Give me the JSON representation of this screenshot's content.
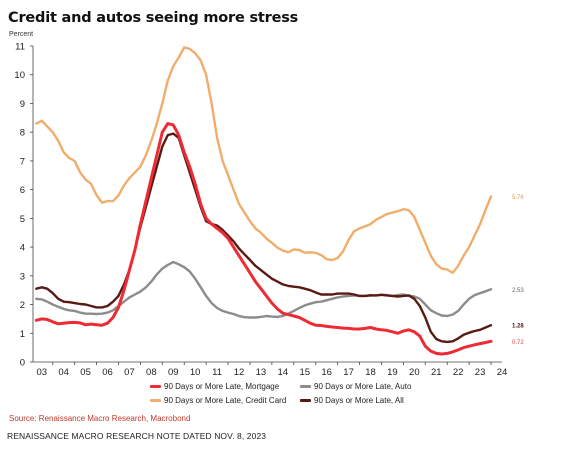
{
  "title": "Credit and autos seeing more stress",
  "units_label": "Percent",
  "source": "Source: Renaissance Macro Research, Macrobond",
  "footnote": "RENAISSANCE MACRO RESEARCH NOTE DATED NOV. 8, 2023",
  "chart_data": {
    "type": "line",
    "title": "Credit and autos seeing more stress",
    "ylabel": "Percent",
    "xlabel": "",
    "xlim": [
      2002.6,
      2024.0
    ],
    "ylim": [
      0,
      11
    ],
    "y_ticks": [
      0,
      1,
      2,
      3,
      4,
      5,
      6,
      7,
      8,
      9,
      10,
      11
    ],
    "x_ticks": [
      {
        "v": 2003,
        "label": "03"
      },
      {
        "v": 2004,
        "label": "04"
      },
      {
        "v": 2005,
        "label": "05"
      },
      {
        "v": 2006,
        "label": "06"
      },
      {
        "v": 2007,
        "label": "07"
      },
      {
        "v": 2008,
        "label": "08"
      },
      {
        "v": 2009,
        "label": "09"
      },
      {
        "v": 2010,
        "label": "10"
      },
      {
        "v": 2011,
        "label": "11"
      },
      {
        "v": 2012,
        "label": "12"
      },
      {
        "v": 2013,
        "label": "13"
      },
      {
        "v": 2014,
        "label": "14"
      },
      {
        "v": 2015,
        "label": "15"
      },
      {
        "v": 2016,
        "label": "16"
      },
      {
        "v": 2017,
        "label": "17"
      },
      {
        "v": 2018,
        "label": "18"
      },
      {
        "v": 2019,
        "label": "19"
      },
      {
        "v": 2020,
        "label": "20"
      },
      {
        "v": 2021,
        "label": "21"
      },
      {
        "v": 2022,
        "label": "22"
      },
      {
        "v": 2023,
        "label": "23"
      },
      {
        "v": 2024,
        "label": "24"
      }
    ],
    "grid": false,
    "legend_position": "bottom",
    "series": [
      {
        "name": "90 Days or More Late, Mortgage",
        "color": "#ee2b35",
        "end_label": "0.72",
        "x": [
          2002.75,
          2003.0,
          2003.25,
          2003.5,
          2003.75,
          2004.0,
          2004.25,
          2004.5,
          2004.75,
          2005.0,
          2005.25,
          2005.5,
          2005.75,
          2006.0,
          2006.25,
          2006.5,
          2006.75,
          2007.0,
          2007.25,
          2007.5,
          2007.75,
          2008.0,
          2008.25,
          2008.5,
          2008.75,
          2009.0,
          2009.25,
          2009.5,
          2009.75,
          2010.0,
          2010.25,
          2010.5,
          2010.75,
          2011.0,
          2011.25,
          2011.5,
          2011.75,
          2012.0,
          2012.25,
          2012.5,
          2012.75,
          2013.0,
          2013.25,
          2013.5,
          2013.75,
          2014.0,
          2014.25,
          2014.5,
          2014.75,
          2015.0,
          2015.25,
          2015.5,
          2015.75,
          2016.0,
          2016.25,
          2016.5,
          2016.75,
          2017.0,
          2017.25,
          2017.5,
          2017.75,
          2018.0,
          2018.25,
          2018.5,
          2018.75,
          2019.0,
          2019.25,
          2019.5,
          2019.75,
          2020.0,
          2020.25,
          2020.5,
          2020.75,
          2021.0,
          2021.25,
          2021.5,
          2021.75,
          2022.0,
          2022.25,
          2022.5,
          2022.75,
          2023.0,
          2023.25,
          2023.5
        ],
        "values": [
          1.45,
          1.5,
          1.48,
          1.4,
          1.33,
          1.35,
          1.37,
          1.38,
          1.36,
          1.3,
          1.32,
          1.3,
          1.28,
          1.35,
          1.55,
          1.9,
          2.5,
          3.2,
          3.9,
          4.8,
          5.6,
          6.4,
          7.2,
          8.0,
          8.3,
          8.25,
          7.9,
          7.3,
          6.8,
          6.2,
          5.5,
          5.0,
          4.8,
          4.65,
          4.5,
          4.3,
          4.0,
          3.7,
          3.4,
          3.1,
          2.8,
          2.55,
          2.3,
          2.05,
          1.85,
          1.7,
          1.65,
          1.6,
          1.55,
          1.45,
          1.35,
          1.28,
          1.27,
          1.24,
          1.22,
          1.2,
          1.18,
          1.17,
          1.15,
          1.15,
          1.17,
          1.2,
          1.15,
          1.12,
          1.1,
          1.05,
          1.0,
          1.08,
          1.12,
          1.05,
          0.9,
          0.55,
          0.38,
          0.3,
          0.28,
          0.3,
          0.35,
          0.42,
          0.5,
          0.55,
          0.6,
          0.64,
          0.68,
          0.72
        ]
      },
      {
        "name": "90 Days or More Late, Auto",
        "color": "#8c8c8c",
        "end_label": "2.53",
        "x": [
          2002.75,
          2003.0,
          2003.25,
          2003.5,
          2003.75,
          2004.0,
          2004.25,
          2004.5,
          2004.75,
          2005.0,
          2005.25,
          2005.5,
          2005.75,
          2006.0,
          2006.25,
          2006.5,
          2006.75,
          2007.0,
          2007.25,
          2007.5,
          2007.75,
          2008.0,
          2008.25,
          2008.5,
          2008.75,
          2009.0,
          2009.25,
          2009.5,
          2009.75,
          2010.0,
          2010.25,
          2010.5,
          2010.75,
          2011.0,
          2011.25,
          2011.5,
          2011.75,
          2012.0,
          2012.25,
          2012.5,
          2012.75,
          2013.0,
          2013.25,
          2013.5,
          2013.75,
          2014.0,
          2014.25,
          2014.5,
          2014.75,
          2015.0,
          2015.25,
          2015.5,
          2015.75,
          2016.0,
          2016.25,
          2016.5,
          2016.75,
          2017.0,
          2017.25,
          2017.5,
          2017.75,
          2018.0,
          2018.25,
          2018.5,
          2018.75,
          2019.0,
          2019.25,
          2019.5,
          2019.75,
          2020.0,
          2020.25,
          2020.5,
          2020.75,
          2021.0,
          2021.25,
          2021.5,
          2021.75,
          2022.0,
          2022.25,
          2022.5,
          2022.75,
          2023.0,
          2023.25,
          2023.5
        ],
        "values": [
          2.2,
          2.18,
          2.1,
          2.0,
          1.92,
          1.85,
          1.8,
          1.78,
          1.72,
          1.68,
          1.68,
          1.67,
          1.68,
          1.72,
          1.8,
          1.95,
          2.1,
          2.25,
          2.35,
          2.45,
          2.6,
          2.8,
          3.05,
          3.25,
          3.38,
          3.48,
          3.4,
          3.3,
          3.15,
          2.9,
          2.6,
          2.3,
          2.05,
          1.88,
          1.78,
          1.72,
          1.67,
          1.6,
          1.56,
          1.55,
          1.55,
          1.57,
          1.6,
          1.58,
          1.57,
          1.6,
          1.68,
          1.78,
          1.88,
          1.97,
          2.03,
          2.08,
          2.1,
          2.15,
          2.2,
          2.25,
          2.28,
          2.3,
          2.32,
          2.3,
          2.3,
          2.33,
          2.32,
          2.34,
          2.33,
          2.3,
          2.33,
          2.35,
          2.3,
          2.28,
          2.2,
          2.0,
          1.8,
          1.7,
          1.62,
          1.6,
          1.65,
          1.78,
          2.0,
          2.2,
          2.33,
          2.4,
          2.46,
          2.53
        ]
      },
      {
        "name": "90 Days or More Late, Credit Card",
        "color": "#f0ad6b",
        "end_label": "5.76",
        "x": [
          2002.75,
          2003.0,
          2003.25,
          2003.5,
          2003.75,
          2004.0,
          2004.25,
          2004.5,
          2004.75,
          2005.0,
          2005.25,
          2005.5,
          2005.75,
          2006.0,
          2006.25,
          2006.5,
          2006.75,
          2007.0,
          2007.25,
          2007.5,
          2007.75,
          2008.0,
          2008.25,
          2008.5,
          2008.75,
          2009.0,
          2009.25,
          2009.5,
          2009.75,
          2010.0,
          2010.25,
          2010.5,
          2010.75,
          2011.0,
          2011.25,
          2011.5,
          2011.75,
          2012.0,
          2012.25,
          2012.5,
          2012.75,
          2013.0,
          2013.25,
          2013.5,
          2013.75,
          2014.0,
          2014.25,
          2014.5,
          2014.75,
          2015.0,
          2015.25,
          2015.5,
          2015.75,
          2016.0,
          2016.25,
          2016.5,
          2016.75,
          2017.0,
          2017.25,
          2017.5,
          2017.75,
          2018.0,
          2018.25,
          2018.5,
          2018.75,
          2019.0,
          2019.25,
          2019.5,
          2019.75,
          2020.0,
          2020.25,
          2020.5,
          2020.75,
          2021.0,
          2021.25,
          2021.5,
          2021.75,
          2022.0,
          2022.25,
          2022.5,
          2022.75,
          2023.0,
          2023.25,
          2023.5
        ],
        "values": [
          8.3,
          8.4,
          8.2,
          8.0,
          7.7,
          7.3,
          7.1,
          7.0,
          6.6,
          6.35,
          6.2,
          5.8,
          5.55,
          5.6,
          5.6,
          5.8,
          6.15,
          6.4,
          6.6,
          6.8,
          7.2,
          7.7,
          8.3,
          9.0,
          9.8,
          10.3,
          10.6,
          10.95,
          10.9,
          10.75,
          10.5,
          10.0,
          9.0,
          7.8,
          7.0,
          6.5,
          6.0,
          5.5,
          5.2,
          4.9,
          4.65,
          4.5,
          4.3,
          4.15,
          3.98,
          3.88,
          3.82,
          3.92,
          3.9,
          3.8,
          3.82,
          3.8,
          3.72,
          3.58,
          3.55,
          3.62,
          3.85,
          4.25,
          4.55,
          4.65,
          4.72,
          4.8,
          4.95,
          5.05,
          5.15,
          5.2,
          5.25,
          5.32,
          5.28,
          5.05,
          4.6,
          4.15,
          3.7,
          3.4,
          3.25,
          3.22,
          3.1,
          3.35,
          3.7,
          4.0,
          4.4,
          4.8,
          5.3,
          5.76
        ]
      },
      {
        "name": "90 Days or More Late, All",
        "color": "#5a1a14",
        "end_label": "1.28",
        "x": [
          2002.75,
          2003.0,
          2003.25,
          2003.5,
          2003.75,
          2004.0,
          2004.25,
          2004.5,
          2004.75,
          2005.0,
          2005.25,
          2005.5,
          2005.75,
          2006.0,
          2006.25,
          2006.5,
          2006.75,
          2007.0,
          2007.25,
          2007.5,
          2007.75,
          2008.0,
          2008.25,
          2008.5,
          2008.75,
          2009.0,
          2009.25,
          2009.5,
          2009.75,
          2010.0,
          2010.25,
          2010.5,
          2010.75,
          2011.0,
          2011.25,
          2011.5,
          2011.75,
          2012.0,
          2012.25,
          2012.5,
          2012.75,
          2013.0,
          2013.25,
          2013.5,
          2013.75,
          2014.0,
          2014.25,
          2014.5,
          2014.75,
          2015.0,
          2015.25,
          2015.5,
          2015.75,
          2016.0,
          2016.25,
          2016.5,
          2016.75,
          2017.0,
          2017.25,
          2017.5,
          2017.75,
          2018.0,
          2018.25,
          2018.5,
          2018.75,
          2019.0,
          2019.25,
          2019.5,
          2019.75,
          2020.0,
          2020.25,
          2020.5,
          2020.75,
          2021.0,
          2021.25,
          2021.5,
          2021.75,
          2022.0,
          2022.25,
          2022.5,
          2022.75,
          2023.0,
          2023.25,
          2023.5
        ],
        "values": [
          2.55,
          2.6,
          2.55,
          2.4,
          2.2,
          2.1,
          2.08,
          2.05,
          2.02,
          2.0,
          1.95,
          1.9,
          1.9,
          1.95,
          2.1,
          2.3,
          2.7,
          3.2,
          3.9,
          4.7,
          5.4,
          6.1,
          6.8,
          7.5,
          7.9,
          7.95,
          7.8,
          7.2,
          6.6,
          6.0,
          5.4,
          4.9,
          4.8,
          4.75,
          4.6,
          4.4,
          4.2,
          3.95,
          3.75,
          3.55,
          3.35,
          3.2,
          3.05,
          2.9,
          2.8,
          2.7,
          2.65,
          2.62,
          2.6,
          2.55,
          2.5,
          2.42,
          2.35,
          2.35,
          2.35,
          2.38,
          2.38,
          2.38,
          2.35,
          2.3,
          2.3,
          2.32,
          2.32,
          2.34,
          2.32,
          2.3,
          2.28,
          2.3,
          2.32,
          2.2,
          1.95,
          1.55,
          1.05,
          0.8,
          0.72,
          0.7,
          0.72,
          0.82,
          0.95,
          1.02,
          1.08,
          1.12,
          1.2,
          1.28
        ]
      }
    ]
  }
}
